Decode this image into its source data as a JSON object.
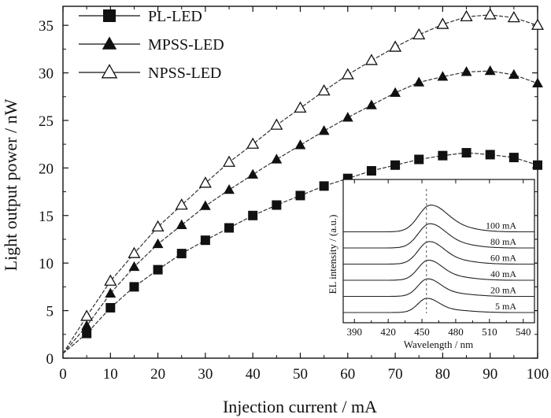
{
  "chart_data": [
    {
      "type": "line",
      "xlabel": "Injection current / mA",
      "ylabel": "Light output power / nW",
      "xlim": [
        0,
        100
      ],
      "ylim": [
        0,
        37
      ],
      "x_ticks": [
        "0",
        "10",
        "20",
        "30",
        "40",
        "50",
        "60",
        "70",
        "80",
        "90",
        "100"
      ],
      "y_ticks": [
        "0",
        "5",
        "10",
        "15",
        "20",
        "25",
        "30",
        "35"
      ],
      "grid": false,
      "legend_position": "top-left",
      "x": [
        0,
        5,
        10,
        15,
        20,
        25,
        30,
        35,
        40,
        45,
        50,
        55,
        60,
        65,
        70,
        75,
        80,
        85,
        90,
        95,
        100
      ],
      "series": [
        {
          "name": "PL-LED",
          "marker": "filled-square",
          "values": [
            0.5,
            2.6,
            5.3,
            7.5,
            9.3,
            11.0,
            12.4,
            13.7,
            15.0,
            16.1,
            17.1,
            18.1,
            18.9,
            19.7,
            20.3,
            20.9,
            21.3,
            21.6,
            21.4,
            21.1,
            20.3
          ]
        },
        {
          "name": "MPSS-LED",
          "marker": "filled-triangle",
          "values": [
            0.5,
            3.4,
            6.8,
            9.6,
            12.0,
            14.0,
            16.0,
            17.7,
            19.3,
            20.9,
            22.4,
            23.9,
            25.3,
            26.6,
            27.9,
            29.0,
            29.6,
            30.1,
            30.2,
            29.8,
            28.9
          ]
        },
        {
          "name": "NPSS-LED",
          "marker": "open-triangle",
          "values": [
            0.5,
            4.4,
            8.1,
            11.0,
            13.8,
            16.1,
            18.4,
            20.6,
            22.5,
            24.5,
            26.3,
            28.1,
            29.8,
            31.3,
            32.7,
            34.0,
            35.1,
            35.9,
            36.1,
            35.8,
            35.0
          ]
        }
      ]
    },
    {
      "type": "line",
      "xlabel": "Wavelength / nm",
      "ylabel": "EL intensity / (a.u.)",
      "xlim": [
        380,
        550
      ],
      "x_ticks": [
        "390",
        "420",
        "450",
        "480",
        "510",
        "540"
      ],
      "grid": false,
      "peak_wavelength_nm": 454,
      "series": [
        {
          "name": "5 mA",
          "peak": 0.085
        },
        {
          "name": "20 mA",
          "peak": 0.105
        },
        {
          "name": "40 mA",
          "peak": 0.12
        },
        {
          "name": "60 mA",
          "peak": 0.135
        },
        {
          "name": "80 mA",
          "peak": 0.145
        },
        {
          "name": "100 mA",
          "peak": 0.16
        }
      ]
    }
  ]
}
